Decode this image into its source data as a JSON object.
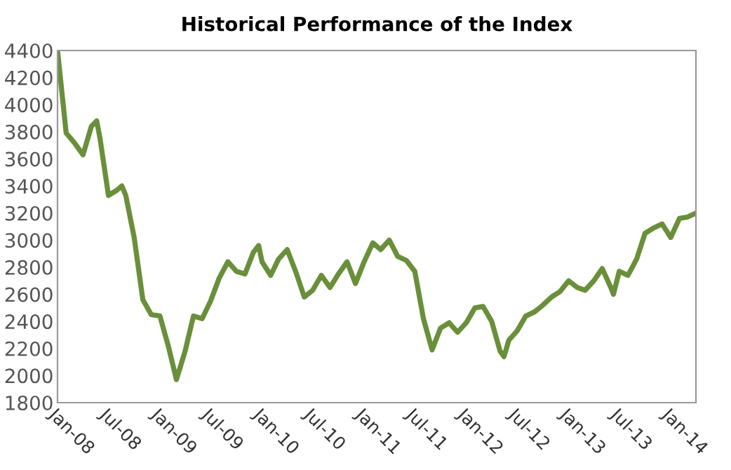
{
  "chart_data": {
    "type": "line",
    "title": "Historical Performance of the Index",
    "x": [
      "2008-01-01",
      "2008-02-01",
      "2008-03-01",
      "2008-04-01",
      "2008-05-01",
      "2008-05-20",
      "2008-06-01",
      "2008-07-01",
      "2008-08-01",
      "2008-08-18",
      "2008-09-01",
      "2008-10-01",
      "2008-11-01",
      "2008-12-01",
      "2009-01-01",
      "2009-02-01",
      "2009-03-01",
      "2009-04-01",
      "2009-05-01",
      "2009-06-01",
      "2009-07-01",
      "2009-08-01",
      "2009-09-01",
      "2009-10-01",
      "2009-11-01",
      "2009-12-01",
      "2009-12-20",
      "2010-01-01",
      "2010-02-01",
      "2010-03-01",
      "2010-04-01",
      "2010-05-01",
      "2010-06-01",
      "2010-07-01",
      "2010-08-01",
      "2010-09-01",
      "2010-10-01",
      "2010-11-01",
      "2010-12-01",
      "2011-01-01",
      "2011-02-01",
      "2011-03-01",
      "2011-04-01",
      "2011-05-01",
      "2011-06-01",
      "2011-07-01",
      "2011-08-01",
      "2011-09-01",
      "2011-10-01",
      "2011-11-01",
      "2011-12-01",
      "2012-01-01",
      "2012-02-01",
      "2012-03-01",
      "2012-04-01",
      "2012-05-01",
      "2012-05-15",
      "2012-06-01",
      "2012-07-01",
      "2012-08-01",
      "2012-09-01",
      "2012-10-01",
      "2012-11-01",
      "2012-12-01",
      "2013-01-01",
      "2013-02-01",
      "2013-03-01",
      "2013-04-01",
      "2013-05-01",
      "2013-06-01",
      "2013-06-10",
      "2013-07-01",
      "2013-08-01",
      "2013-09-01",
      "2013-10-01",
      "2013-11-01",
      "2013-12-01",
      "2014-01-01",
      "2014-02-01",
      "2014-03-01",
      "2014-04-01"
    ],
    "series": [
      {
        "color": "#6a8f3a",
        "values": [
          4400,
          3790,
          3720,
          3630,
          3840,
          3880,
          3750,
          3330,
          3370,
          3400,
          3330,
          3020,
          2560,
          2450,
          2440,
          2210,
          1970,
          2180,
          2440,
          2420,
          2550,
          2720,
          2840,
          2770,
          2750,
          2910,
          2960,
          2840,
          2740,
          2860,
          2930,
          2770,
          2580,
          2630,
          2740,
          2650,
          2750,
          2840,
          2680,
          2840,
          2980,
          2930,
          3000,
          2880,
          2850,
          2770,
          2420,
          2190,
          2350,
          2390,
          2320,
          2390,
          2500,
          2510,
          2400,
          2180,
          2140,
          2260,
          2330,
          2440,
          2470,
          2520,
          2580,
          2620,
          2700,
          2650,
          2630,
          2700,
          2790,
          2650,
          2600,
          2770,
          2740,
          2860,
          3050,
          3090,
          3120,
          3020,
          3160,
          3170,
          3200
        ]
      }
    ],
    "xlim": [
      "2008-01-01",
      "2014-04-01"
    ],
    "xticks": [
      {
        "value": "2008-01-01",
        "label": "Jan-08"
      },
      {
        "value": "2008-07-01",
        "label": "Jul-08"
      },
      {
        "value": "2009-01-01",
        "label": "Jan-09"
      },
      {
        "value": "2009-07-01",
        "label": "Jul-09"
      },
      {
        "value": "2010-01-01",
        "label": "Jan-10"
      },
      {
        "value": "2010-07-01",
        "label": "Jul-10"
      },
      {
        "value": "2011-01-01",
        "label": "Jan-11"
      },
      {
        "value": "2011-07-01",
        "label": "Jul-11"
      },
      {
        "value": "2012-01-01",
        "label": "Jan-12"
      },
      {
        "value": "2012-07-01",
        "label": "Jul-12"
      },
      {
        "value": "2013-01-01",
        "label": "Jan-13"
      },
      {
        "value": "2013-07-01",
        "label": "Jul-13"
      },
      {
        "value": "2014-01-01",
        "label": "Jan-14"
      }
    ],
    "ylim": [
      1800,
      4400
    ],
    "yticks": [
      1800,
      2000,
      2200,
      2400,
      2600,
      2800,
      3000,
      3200,
      3400,
      3600,
      3800,
      4000,
      4200,
      4400
    ],
    "grid": false,
    "legend": false,
    "marker": "none",
    "line_style": "solid"
  }
}
